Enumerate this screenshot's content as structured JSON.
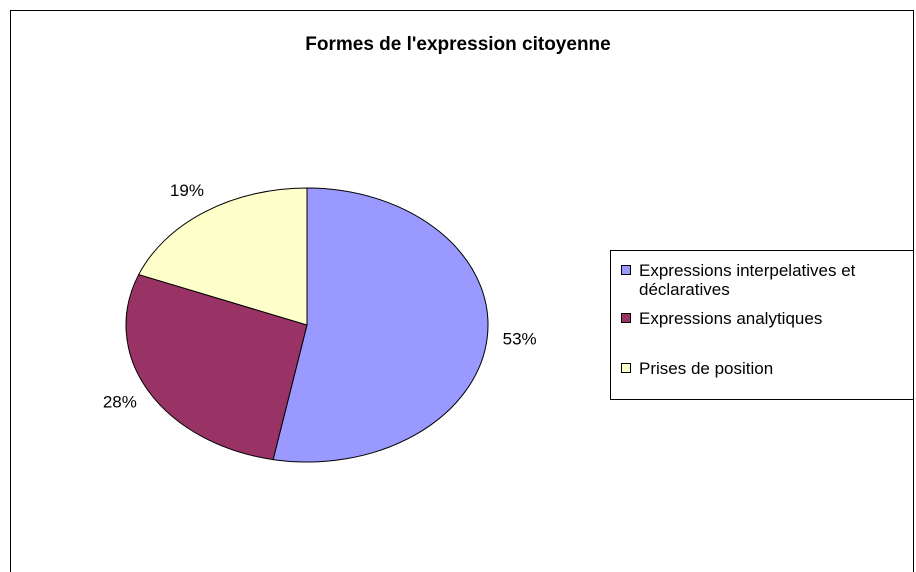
{
  "chart_data": {
    "type": "pie",
    "title": "Formes de l'expression citoyenne",
    "categories": [
      "Expressions interpelatives et déclaratives",
      "Expressions analytiques",
      "Prises de position"
    ],
    "values": [
      53,
      28,
      19
    ],
    "value_labels": [
      "53%",
      "28%",
      "19%"
    ],
    "colors": [
      "#9999ff",
      "#993366",
      "#ffffcc"
    ],
    "legend": "right"
  }
}
